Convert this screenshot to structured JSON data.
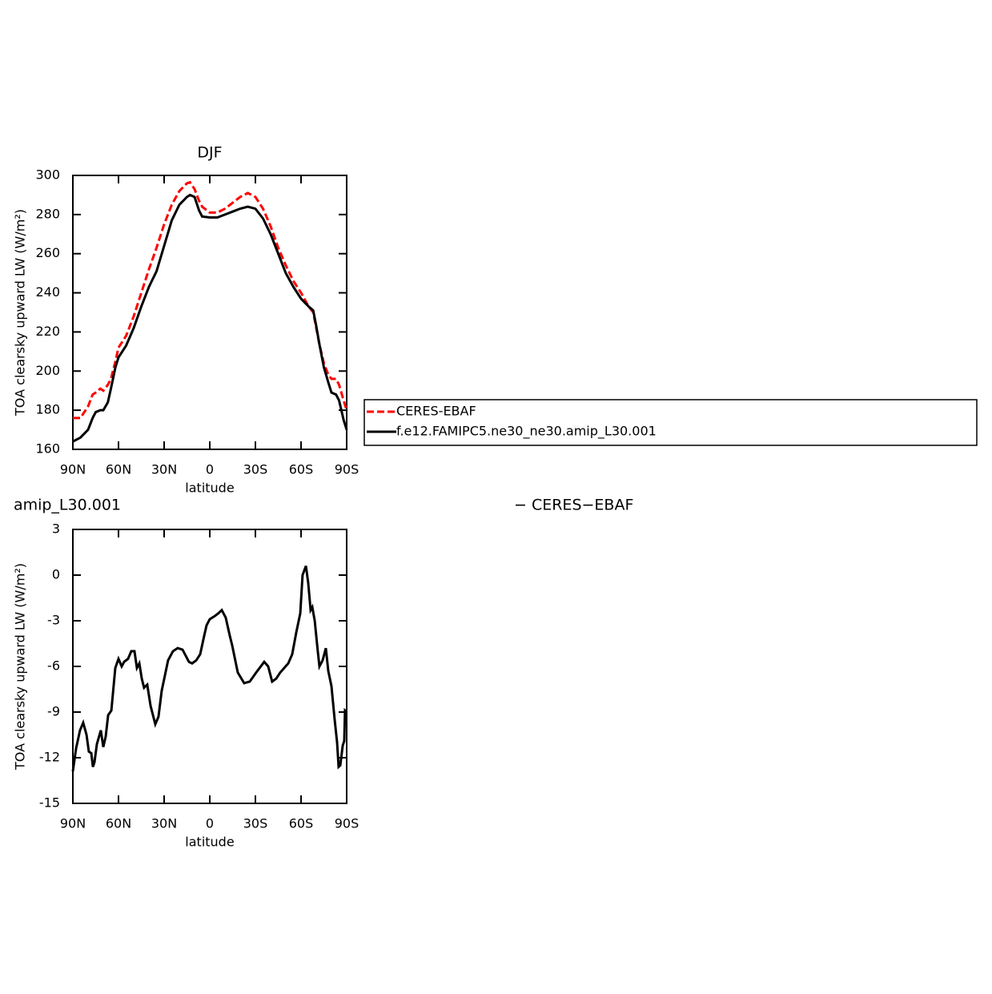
{
  "chart_data": [
    {
      "type": "line",
      "title": "DJF",
      "xlabel": "latitude",
      "ylabel": "TOA clearsky upward LW (W/m²)",
      "x": [
        90,
        85,
        80,
        77,
        75,
        72,
        70,
        67,
        65,
        62,
        60,
        55,
        50,
        45,
        40,
        35,
        30,
        25,
        20,
        15,
        13,
        10,
        7,
        5,
        0,
        -5,
        -10,
        -15,
        -20,
        -25,
        -30,
        -35,
        -40,
        -45,
        -50,
        -55,
        -60,
        -65,
        -68,
        -70,
        -72,
        -75,
        -78,
        -80,
        -83,
        -85,
        -88,
        -90
      ],
      "xlim": [
        90,
        -90
      ],
      "xticks": [
        {
          "value": 90,
          "label": "90N"
        },
        {
          "value": 60,
          "label": "60N"
        },
        {
          "value": 30,
          "label": "30N"
        },
        0,
        {
          "value": -30,
          "label": "30S"
        },
        {
          "value": -60,
          "label": "60S"
        },
        {
          "value": -90,
          "label": "90S"
        }
      ],
      "ylim": [
        160,
        300
      ],
      "yticks": [
        160,
        180,
        200,
        220,
        240,
        260,
        280,
        300
      ],
      "legend": "right",
      "series": [
        {
          "name": "CERES-EBAF",
          "color": "#ff0000",
          "line_style": "dashed",
          "values": [
            176,
            176,
            182,
            188,
            189,
            191,
            190,
            193,
            196,
            205,
            212,
            218,
            228,
            240,
            252,
            263,
            275,
            285,
            292,
            296,
            296.5,
            293,
            287,
            284,
            281,
            281,
            283,
            286,
            289,
            291,
            289,
            283,
            274,
            263,
            254,
            246,
            240,
            233,
            230,
            222,
            214,
            204,
            198,
            196,
            196,
            193,
            185,
            180
          ]
        },
        {
          "name": "f.e12.FAMIPC5.ne30_ne30.amip_L30.001",
          "color": "#000000",
          "line_style": "solid",
          "values": [
            164,
            166,
            170,
            176,
            179,
            180,
            180,
            184,
            191,
            202,
            207,
            213,
            222,
            233,
            243,
            251,
            264,
            277,
            285,
            289,
            290,
            289,
            282,
            279,
            278.5,
            278.5,
            280,
            281.5,
            283,
            284,
            283,
            278,
            270,
            260,
            250,
            243,
            237,
            233,
            231,
            223,
            214,
            202,
            194,
            189,
            188,
            185,
            175,
            170
          ]
        }
      ]
    },
    {
      "type": "line",
      "title_left": "amip_L30.001",
      "title_right": "− CERES−EBAF",
      "xlabel": "latitude",
      "ylabel": "TOA clearsky upward LW (W/m²)",
      "x": [
        90,
        87.9,
        85.3,
        83.2,
        81,
        79.5,
        77.9,
        76.8,
        75.8,
        74.2,
        71.6,
        70,
        68.4,
        66.8,
        64.7,
        62.1,
        60,
        57.9,
        56.3,
        53.7,
        51.6,
        49.5,
        47.9,
        46.3,
        44.7,
        43.2,
        41.1,
        38.9,
        35.8,
        33.7,
        31.6,
        29.5,
        27.4,
        24.2,
        21.1,
        17.9,
        15.8,
        13.7,
        11.6,
        8.9,
        6.3,
        3.7,
        2.1,
        0,
        -3.2,
        -5.8,
        -7.9,
        -10.5,
        -13.2,
        -14.7,
        -18.4,
        -22.6,
        -26.3,
        -30.5,
        -35.8,
        -38.4,
        -41,
        -43.7,
        -46.3,
        -51.6,
        -54.2,
        -56.8,
        -59.5,
        -61,
        -63.2,
        -64.7,
        -66.3,
        -67.4,
        -69,
        -71,
        -72.1,
        -74.2,
        -76.3,
        -77.9,
        -80,
        -82.1,
        -83.7,
        -84.7,
        -85.8,
        -87.4,
        -88.4,
        -88.9,
        -90
      ],
      "xlim": [
        90,
        -90
      ],
      "xticks": [
        {
          "value": 90,
          "label": "90N"
        },
        {
          "value": 60,
          "label": "60N"
        },
        {
          "value": 30,
          "label": "30N"
        },
        0,
        {
          "value": -30,
          "label": "30S"
        },
        {
          "value": -60,
          "label": "60S"
        },
        {
          "value": -90,
          "label": "90S"
        }
      ],
      "ylim": [
        -15,
        3
      ],
      "yticks": [
        -15,
        -12,
        -9,
        -6,
        -3,
        0,
        3
      ],
      "series": [
        {
          "color": "#000000",
          "line_style": "solid",
          "values": [
            -12.9,
            -11.4,
            -10.2,
            -9.7,
            -10.5,
            -11.6,
            -11.7,
            -12.6,
            -12.3,
            -11.1,
            -10.2,
            -11.3,
            -10.6,
            -9.2,
            -8.9,
            -6.1,
            -5.5,
            -6.0,
            -5.7,
            -5.5,
            -5.0,
            -5.0,
            -6.1,
            -5.8,
            -6.8,
            -7.4,
            -7.2,
            -8.6,
            -9.8,
            -9.3,
            -7.6,
            -6.6,
            -5.6,
            -5.0,
            -4.8,
            -4.9,
            -5.3,
            -5.7,
            -5.8,
            -5.6,
            -5.2,
            -4.0,
            -3.3,
            -2.9,
            -2.7,
            -2.5,
            -2.3,
            -2.8,
            -4.0,
            -4.6,
            -6.4,
            -7.1,
            -7.0,
            -6.4,
            -5.7,
            -6.0,
            -7.0,
            -6.8,
            -6.4,
            -5.8,
            -5.2,
            -3.8,
            -2.5,
            0.0,
            0.6,
            -0.5,
            -2.3,
            -2.1,
            -3.0,
            -5.0,
            -6.0,
            -5.6,
            -4.8,
            -6.3,
            -7.3,
            -9.5,
            -11.0,
            -12.6,
            -12.5,
            -11.2,
            -10.9,
            -8.9,
            -9.0
          ]
        }
      ]
    }
  ]
}
